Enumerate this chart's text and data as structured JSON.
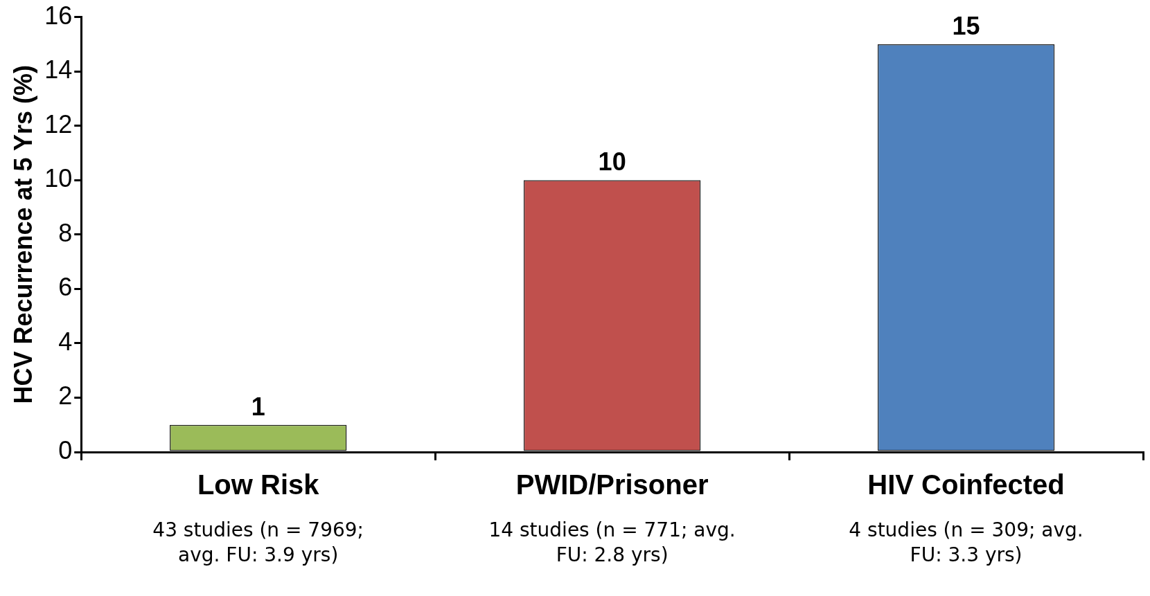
{
  "chart_data": {
    "type": "bar",
    "ylabel": "HCV Recurrence at 5 Yrs (%)",
    "categories": [
      "Low Risk",
      "PWID/Prisoner",
      "HIV Coinfected"
    ],
    "values": [
      1,
      10,
      15
    ],
    "colors": [
      "#9bbb59",
      "#c0504d",
      "#4f81bd"
    ],
    "ylim": [
      0,
      16
    ],
    "yticks": [
      0,
      2,
      4,
      6,
      8,
      10,
      12,
      14,
      16
    ],
    "data_labels": true,
    "annotations": [
      "43 studies (n = 7969; avg. FU: 3.9 yrs)",
      "14 studies (n = 771; avg. FU: 2.8 yrs)",
      "4 studies (n = 309; avg. FU: 3.3 yrs)"
    ]
  }
}
